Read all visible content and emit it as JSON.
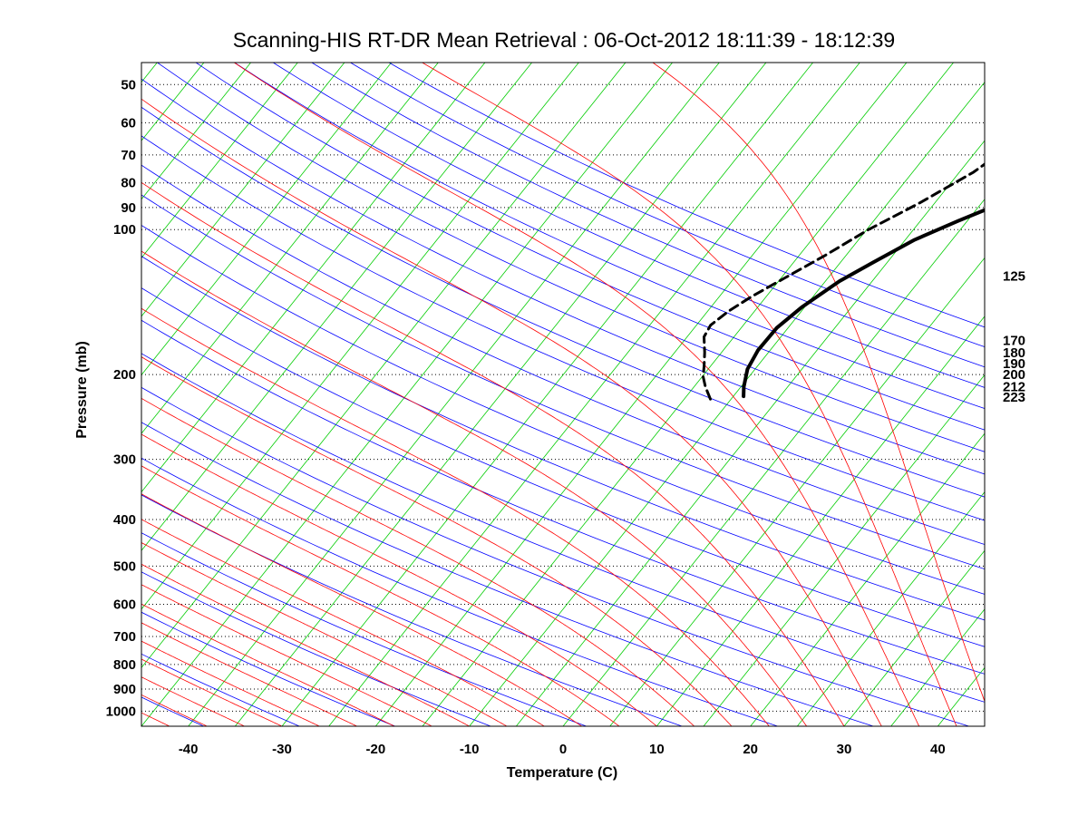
{
  "chart_data": {
    "type": "line",
    "subtype": "skew-t-log-p",
    "title": "Scanning-HIS RT-DR Mean Retrieval : 06-Oct-2012 18:11:39 - 18:12:39",
    "xlabel": "Temperature (C)",
    "ylabel": "Pressure (mb)",
    "xlim": [
      -45,
      45
    ],
    "ylim": [
      1075,
      45
    ],
    "x_ticks": [
      -40,
      -30,
      -20,
      -10,
      0,
      10,
      20,
      30,
      40
    ],
    "x_tick_labels": [
      "-40",
      "-30",
      "-20",
      "-10",
      "0",
      "10",
      "20",
      "30",
      "40"
    ],
    "y_ticks": [
      50,
      60,
      70,
      80,
      90,
      100,
      200,
      300,
      400,
      500,
      600,
      700,
      800,
      900,
      1000
    ],
    "y_tick_labels": [
      "50",
      "60",
      "70",
      "80",
      "90",
      "100",
      "200",
      "300",
      "400",
      "500",
      "600",
      "700",
      "800",
      "900",
      "1000"
    ],
    "grid": "horizontal dotted at pressure ticks",
    "right_labels": [
      {
        "pressure": 125,
        "text": "125"
      },
      {
        "pressure": 170,
        "text": "170"
      },
      {
        "pressure": 180,
        "text": "180"
      },
      {
        "pressure": 190,
        "text": "190"
      },
      {
        "pressure": 200,
        "text": "200"
      },
      {
        "pressure": 212,
        "text": "212"
      },
      {
        "pressure": 223,
        "text": "223"
      }
    ],
    "colors": {
      "isotherm": "#00cc00",
      "dry_adiabat": "#0000ff",
      "moist_adiabat": "#ff0000",
      "profile": "#000000",
      "grid": "#000000"
    },
    "series": [
      {
        "name": "temperature",
        "style": "solid",
        "points": [
          [
            -8.9,
            222
          ],
          [
            -9.7,
            212
          ],
          [
            -10.8,
            195
          ],
          [
            -11.3,
            178
          ],
          [
            -11.2,
            160
          ],
          [
            -10.3,
            145
          ],
          [
            -8.5,
            128
          ],
          [
            -6.5,
            117
          ],
          [
            -4.0,
            105
          ],
          [
            -1.0,
            96
          ],
          [
            2.2,
            88
          ],
          [
            6.3,
            78
          ],
          [
            10.8,
            70
          ],
          [
            16.2,
            62
          ],
          [
            22.0,
            54
          ],
          [
            28.8,
            46
          ]
        ]
      },
      {
        "name": "dewpoint",
        "style": "dashed",
        "points": [
          [
            -12.2,
            225
          ],
          [
            -13.8,
            212
          ],
          [
            -14.9,
            202
          ],
          [
            -15.7,
            192
          ],
          [
            -16.8,
            180
          ],
          [
            -18.2,
            167
          ],
          [
            -18.5,
            158
          ],
          [
            -17.8,
            148
          ],
          [
            -16.6,
            138
          ],
          [
            -14.6,
            126
          ],
          [
            -12.2,
            113
          ],
          [
            -9.8,
            100
          ],
          [
            -6.6,
            88
          ],
          [
            -3.5,
            76
          ],
          [
            -1.2,
            64
          ],
          [
            0.2,
            54
          ],
          [
            1.0,
            46
          ]
        ]
      }
    ]
  }
}
